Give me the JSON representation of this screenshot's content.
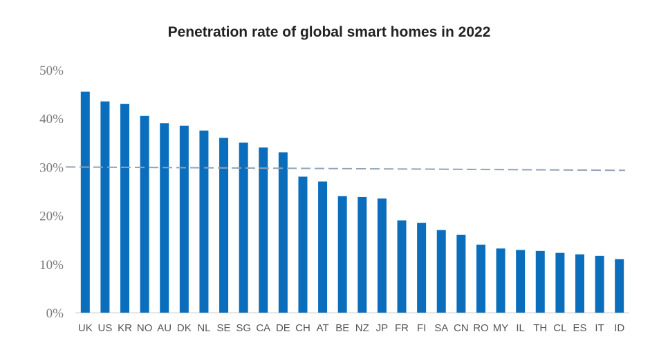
{
  "chart_data": {
    "type": "bar",
    "title": "Penetration rate of global smart homes in 2022",
    "xlabel": "",
    "ylabel": "",
    "ylim": [
      0,
      50
    ],
    "y_ticks": [
      0,
      10,
      20,
      30,
      40,
      50
    ],
    "y_tick_labels": [
      "0%",
      "10%",
      "20%",
      "30%",
      "40%",
      "50%"
    ],
    "categories": [
      "UK",
      "US",
      "KR",
      "NO",
      "AU",
      "DK",
      "NL",
      "SE",
      "SG",
      "CA",
      "DE",
      "CH",
      "AT",
      "BE",
      "NZ",
      "JP",
      "FR",
      "FI",
      "SA",
      "CN",
      "RO",
      "MY",
      "IL",
      "TH",
      "CL",
      "ES",
      "IT",
      "ID"
    ],
    "values": [
      45.5,
      43.5,
      43,
      40.5,
      39,
      38.5,
      37.5,
      36,
      35,
      34,
      33,
      28,
      27,
      24,
      23.8,
      23.5,
      19,
      18.5,
      17,
      16,
      14,
      13.2,
      12.9,
      12.7,
      12.3,
      12,
      11.7,
      11
    ],
    "reference_line": {
      "style": "dashed",
      "start_value": 30,
      "end_value": 29.3
    },
    "bar_color": "#0a6ebd",
    "line_color": "#8fa2b8",
    "grid": false,
    "legend": "none"
  }
}
